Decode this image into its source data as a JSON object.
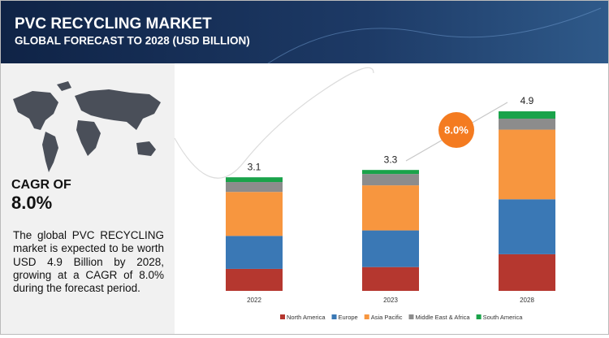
{
  "header": {
    "title": "PVC RECYCLING MARKET",
    "subtitle": "GLOBAL FORECAST TO 2028 (USD BILLION)"
  },
  "side": {
    "cagr_label": "CAGR OF",
    "cagr_value": "8.0%",
    "description": "The global PVC RECYCLING market is expected to be worth USD 4.9 Billion by 2028, growing at a CAGR of 8.0% during the forecast period."
  },
  "chart_data": {
    "type": "stacked_bar",
    "categories": [
      "2022",
      "2023",
      "2028"
    ],
    "series": [
      {
        "name": "North America",
        "color": "#b5372f",
        "values": [
          0.6,
          0.65,
          1.0
        ]
      },
      {
        "name": "Europe",
        "color": "#3a78b5",
        "values": [
          0.9,
          1.0,
          1.5
        ]
      },
      {
        "name": "Asia Pacific",
        "color": "#f7963f",
        "values": [
          1.2,
          1.23,
          1.9
        ]
      },
      {
        "name": "Middle East & Africa",
        "color": "#8c8c8c",
        "values": [
          0.27,
          0.31,
          0.3
        ]
      },
      {
        "name": "South America",
        "color": "#1aa34a",
        "values": [
          0.13,
          0.11,
          0.2
        ]
      }
    ],
    "totals": [
      3.1,
      3.3,
      4.9
    ],
    "annotation": "8.0%",
    "annotation_color": "#f47b20"
  }
}
